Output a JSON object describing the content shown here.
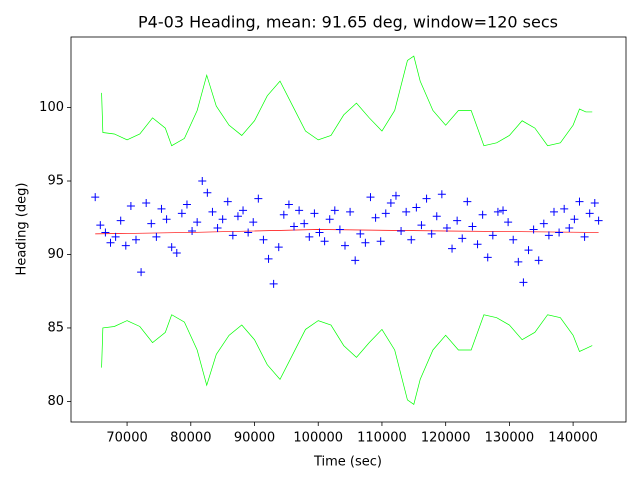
{
  "chart_data": {
    "type": "scatter",
    "title": "P4-03 Heading, mean: 91.65 deg, window=120 secs",
    "xlabel": "Time (sec)",
    "ylabel": "Heading (deg)",
    "xlim": [
      61200,
      148300
    ],
    "ylim": [
      78.6,
      104.8
    ],
    "xticks": [
      70000,
      80000,
      90000,
      100000,
      110000,
      120000,
      130000,
      140000
    ],
    "yticks": [
      80,
      85,
      90,
      95,
      100
    ],
    "grid": false,
    "series": [
      {
        "type": "line",
        "color": "#00ff00",
        "x": [
          66000,
          66200,
          68000,
          70000,
          72000,
          74000,
          76000,
          77000,
          79000,
          81000,
          82500,
          84000,
          86000,
          88000,
          90000,
          92000,
          94000,
          96000,
          98000,
          100000,
          102000,
          104000,
          106000,
          108000,
          110000,
          112000,
          114000,
          115000,
          116000,
          118000,
          120000,
          122000,
          124000,
          126000,
          128000,
          130000,
          132000,
          134000,
          136000,
          138000,
          140000,
          141000,
          142000,
          143000
        ],
        "values": [
          101,
          98.3,
          98.2,
          97.8,
          98.2,
          99.3,
          98.6,
          97.4,
          97.9,
          99.8,
          102.2,
          100.1,
          98.8,
          98.1,
          99.1,
          100.8,
          101.8,
          100.1,
          98.4,
          97.8,
          98.1,
          99.5,
          100.3,
          99.3,
          98.4,
          99.8,
          103.2,
          103.5,
          101.8,
          99.8,
          98.8,
          99.8,
          99.8,
          97.4,
          97.6,
          98.1,
          99.1,
          98.6,
          97.4,
          97.6,
          98.8,
          99.9,
          99.7,
          99.7
        ]
      },
      {
        "type": "line",
        "color": "#00ff00",
        "x": [
          66000,
          66200,
          68000,
          70000,
          72000,
          74000,
          76000,
          77000,
          79000,
          81000,
          82500,
          84000,
          86000,
          88000,
          90000,
          92000,
          94000,
          96000,
          98000,
          100000,
          102000,
          104000,
          106000,
          108000,
          110000,
          112000,
          114000,
          115000,
          116000,
          118000,
          120000,
          122000,
          124000,
          126000,
          128000,
          130000,
          132000,
          134000,
          136000,
          138000,
          140000,
          141000,
          142000,
          143000
        ],
        "values": [
          82.3,
          85.0,
          85.1,
          85.5,
          85.1,
          84.0,
          84.7,
          85.9,
          85.4,
          83.5,
          81.1,
          83.2,
          84.5,
          85.2,
          84.2,
          82.5,
          81.5,
          83.2,
          84.9,
          85.5,
          85.2,
          83.8,
          83.0,
          84.0,
          84.9,
          83.5,
          80.1,
          79.8,
          81.5,
          83.5,
          84.5,
          83.5,
          83.5,
          85.9,
          85.7,
          85.2,
          84.2,
          84.7,
          85.9,
          85.7,
          84.5,
          83.4,
          83.6,
          83.8
        ]
      },
      {
        "type": "line",
        "color": "#ff0000",
        "x": [
          65000,
          80000,
          100000,
          120000,
          144000
        ],
        "values": [
          91.4,
          91.5,
          91.7,
          91.6,
          91.5
        ]
      },
      {
        "type": "scatter",
        "color": "#0000ff",
        "x": [
          65000,
          65800,
          66600,
          67400,
          68200,
          69000,
          69800,
          70600,
          71400,
          72200,
          73000,
          73800,
          74600,
          75400,
          76200,
          77000,
          77800,
          78600,
          79400,
          80200,
          81000,
          81800,
          82600,
          83400,
          84200,
          85000,
          85800,
          86600,
          87400,
          88200,
          89000,
          89800,
          90600,
          91400,
          92200,
          93000,
          93800,
          94600,
          95400,
          96200,
          97000,
          97800,
          98600,
          99400,
          100200,
          101000,
          101800,
          102600,
          103400,
          104200,
          105000,
          105800,
          106600,
          107400,
          108200,
          109000,
          109800,
          110600,
          111400,
          112200,
          113000,
          113800,
          114600,
          115400,
          116200,
          117000,
          117800,
          118600,
          119400,
          120200,
          121000,
          121800,
          122600,
          123400,
          124200,
          125000,
          125800,
          126600,
          127400,
          128200,
          129000,
          129800,
          130600,
          131400,
          132200,
          133000,
          133800,
          134600,
          135400,
          136200,
          137000,
          137800,
          138600,
          139400,
          140200,
          141000,
          141800,
          142600,
          143400,
          144000
        ],
        "values": [
          93.9,
          92.0,
          91.5,
          90.8,
          91.2,
          92.3,
          90.6,
          93.3,
          91.0,
          88.8,
          93.5,
          92.1,
          91.2,
          93.1,
          92.4,
          90.5,
          90.1,
          92.8,
          93.4,
          91.6,
          92.2,
          95.0,
          94.2,
          92.9,
          91.8,
          92.4,
          93.6,
          91.3,
          92.6,
          93.0,
          91.5,
          92.2,
          93.8,
          91.0,
          89.7,
          88.0,
          90.5,
          92.7,
          93.4,
          91.9,
          93.0,
          92.1,
          91.2,
          92.8,
          91.5,
          90.9,
          92.4,
          93.0,
          91.7,
          90.6,
          92.9,
          89.6,
          91.4,
          90.8,
          93.9,
          92.5,
          90.9,
          92.8,
          93.5,
          94.0,
          91.6,
          92.9,
          91.0,
          93.2,
          92.0,
          93.8,
          91.4,
          92.6,
          94.1,
          91.8,
          90.4,
          92.3,
          91.1,
          93.6,
          91.9,
          90.7,
          92.7,
          89.8,
          91.3,
          92.9,
          93.0,
          92.2,
          91.0,
          89.5,
          88.1,
          90.3,
          91.7,
          89.6,
          92.1,
          91.3,
          92.9,
          91.5,
          93.1,
          91.8,
          92.4,
          93.6,
          91.2,
          92.8,
          93.5,
          92.3
        ]
      }
    ]
  }
}
